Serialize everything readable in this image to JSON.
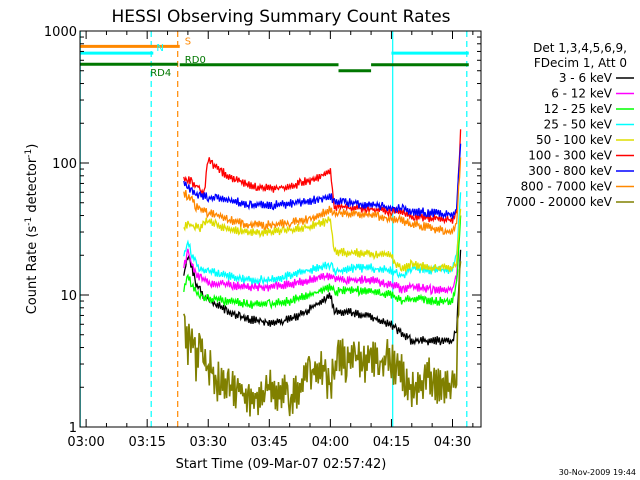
{
  "chart_data": {
    "type": "line",
    "title": "HESSI Observing Summary Count Rates",
    "xlabel": "Start Time (09-Mar-07 02:57:42)",
    "ylabel": "Count Rate (s⁻¹ detector⁻¹)",
    "ylabel_parts": [
      "Count Rate (s",
      "-1",
      " detector",
      "-1",
      ")"
    ],
    "y_scale": "log",
    "ylim": [
      1,
      1000
    ],
    "xlim_minutes": [
      -1.5,
      97
    ],
    "x_ticks": [
      {
        "t": 0,
        "label": "03:00"
      },
      {
        "t": 15,
        "label": "03:15"
      },
      {
        "t": 30,
        "label": "03:30"
      },
      {
        "t": 45,
        "label": "03:45"
      },
      {
        "t": 60,
        "label": "04:00"
      },
      {
        "t": 75,
        "label": "04:15"
      },
      {
        "t": 90,
        "label": "04:30"
      }
    ],
    "y_ticks": [
      {
        "v": 1,
        "label": "1"
      },
      {
        "v": 10,
        "label": "10"
      },
      {
        "v": 100,
        "label": "100"
      },
      {
        "v": 1000,
        "label": "1000"
      }
    ],
    "legend": {
      "placement": "right",
      "header": [
        "Det 1,3,4,5,6,9,",
        "FDecim 1, Att 0"
      ]
    },
    "series": [
      {
        "name": "3 - 6 keV",
        "color": "#000000",
        "t": [
          24,
          25,
          26,
          27,
          28,
          29,
          30,
          32,
          35,
          40,
          45,
          50,
          55,
          60,
          61,
          65,
          70,
          75,
          78,
          80,
          85,
          90,
          91,
          92
        ],
        "y": [
          14,
          20,
          16,
          12,
          11,
          9.5,
          9,
          8.5,
          7.5,
          6.5,
          6.2,
          6.5,
          7.8,
          10,
          7.5,
          7.5,
          6.8,
          6,
          5,
          4.5,
          4.5,
          4.5,
          5.5,
          22
        ]
      },
      {
        "name": "6 - 12 keV",
        "color": "#ff00ff",
        "t": [
          24,
          25,
          26,
          27,
          28,
          30,
          35,
          40,
          45,
          50,
          55,
          60,
          61,
          65,
          70,
          75,
          78,
          80,
          85,
          90,
          91,
          92
        ],
        "y": [
          16,
          22,
          17,
          14,
          13.5,
          12.5,
          12,
          11.5,
          11.5,
          12,
          13,
          14,
          13,
          13,
          13,
          12,
          11,
          11.5,
          11,
          11,
          14,
          40
        ]
      },
      {
        "name": "12 - 25 keV",
        "color": "#00ff00",
        "t": [
          24,
          25,
          26,
          27,
          28,
          30,
          35,
          40,
          45,
          50,
          55,
          60,
          61,
          65,
          70,
          75,
          78,
          80,
          85,
          90,
          91,
          92
        ],
        "y": [
          11,
          14,
          12,
          10.5,
          10,
          9.5,
          9,
          8.5,
          8.5,
          9,
          10,
          11.5,
          10.5,
          11,
          10.5,
          10,
          9,
          9.5,
          9,
          9,
          12,
          40
        ]
      },
      {
        "name": "25 - 50 keV",
        "color": "#00ffff",
        "t": [
          24,
          25,
          26,
          27,
          28,
          30,
          35,
          40,
          45,
          50,
          55,
          60,
          61,
          65,
          70,
          75,
          78,
          80,
          85,
          90,
          91,
          92
        ],
        "y": [
          20,
          25,
          20,
          17,
          15.5,
          15,
          14,
          13,
          13,
          14,
          15.5,
          17,
          15,
          16,
          16,
          15.5,
          14,
          16,
          15.5,
          15.5,
          20,
          60
        ]
      },
      {
        "name": "50 - 100 keV",
        "color": "#dddd00",
        "t": [
          24,
          25,
          26,
          27,
          28,
          29,
          30,
          32,
          35,
          40,
          45,
          50,
          55,
          60,
          61,
          65,
          70,
          75,
          76,
          78,
          80,
          85,
          90,
          91,
          92
        ],
        "y": [
          33,
          35,
          34,
          33,
          32,
          34,
          37,
          34,
          32,
          30,
          30,
          31,
          33,
          37,
          21,
          21,
          20.5,
          20,
          17,
          16,
          17,
          16,
          16,
          18,
          45
        ]
      },
      {
        "name": "100 - 300 keV",
        "color": "#ff0000",
        "t": [
          24,
          25,
          26,
          27,
          28,
          29,
          30,
          32,
          35,
          40,
          45,
          50,
          55,
          60,
          61,
          65,
          70,
          75,
          78,
          80,
          85,
          90,
          91,
          92
        ],
        "y": [
          78,
          76,
          72,
          68,
          64,
          60,
          104,
          92,
          80,
          68,
          64,
          66,
          74,
          86,
          47,
          46,
          45,
          43,
          42,
          40,
          38,
          37,
          42,
          180
        ]
      },
      {
        "name": "300 - 800 keV",
        "color": "#0000ff",
        "t": [
          24,
          25,
          26,
          27,
          28,
          30,
          32,
          35,
          40,
          45,
          50,
          55,
          60,
          61,
          65,
          70,
          75,
          78,
          80,
          85,
          90,
          91,
          92
        ],
        "y": [
          72,
          66,
          62,
          58,
          56,
          55,
          54,
          52,
          49,
          48,
          49,
          52,
          56,
          51,
          50,
          48,
          46,
          45,
          43,
          42,
          40,
          45,
          140
        ]
      },
      {
        "name": "800 - 7000 keV",
        "color": "#ff8800",
        "t": [
          24,
          25,
          26,
          27,
          28,
          30,
          32,
          35,
          40,
          45,
          50,
          55,
          60,
          61,
          65,
          70,
          75,
          78,
          80,
          85,
          90,
          91,
          92
        ],
        "y": [
          60,
          56,
          52,
          47,
          44,
          42,
          40,
          37,
          34,
          34,
          35,
          38,
          44,
          42,
          41,
          40,
          38,
          36,
          35,
          32,
          30,
          34,
          110
        ]
      },
      {
        "name": "7000 - 20000 keV",
        "color": "#808000",
        "t": [
          24,
          25,
          26,
          27,
          28,
          29,
          30,
          31,
          32,
          33,
          35,
          37,
          40,
          45,
          50,
          55,
          58,
          60,
          61,
          62,
          64,
          66,
          68,
          70,
          72,
          74,
          75,
          76,
          78,
          80,
          82,
          84,
          86,
          88,
          90,
          91,
          92
        ],
        "y": [
          6,
          4,
          5,
          3,
          4,
          3,
          2.5,
          3,
          2,
          2.5,
          2,
          2,
          1.6,
          2,
          1.7,
          2.5,
          3,
          2,
          3,
          3.5,
          3,
          3.7,
          3,
          3.5,
          3,
          3.5,
          3,
          3,
          2.5,
          2,
          2,
          2.5,
          2,
          2,
          2,
          3,
          18
        ]
      }
    ],
    "annotations": {
      "flags": [
        {
          "label": "S",
          "color": "#ff8800",
          "y": 765,
          "t_start": -1.5,
          "t_end": 23,
          "label_t": 24
        },
        {
          "label": "N",
          "color": "#00ffff",
          "y": 680,
          "t_start": -1.5,
          "t_end": 16.5,
          "label_t": 17
        },
        {
          "label": "N",
          "color": "#00ffff",
          "y": 680,
          "t_start": 75,
          "t_end": 94,
          "label_t": null
        },
        {
          "label": "RD4",
          "color": "#007700",
          "y": 560,
          "t_start": -1.5,
          "t_end": 22.5,
          "label_t": 15.5
        },
        {
          "label": "RD0",
          "color": "#007700",
          "y": 555,
          "t_start": 23,
          "t_end": 62,
          "label_t": 24
        },
        {
          "label": "",
          "color": "#007700",
          "y": 500,
          "t_start": 62,
          "t_end": 70,
          "label_t": null
        },
        {
          "label": "",
          "color": "#007700",
          "y": 555,
          "t_start": 70,
          "t_end": 94,
          "label_t": null
        }
      ],
      "vlines": [
        {
          "t": -1.45,
          "color": "#00ffff",
          "style": "solid"
        },
        {
          "t": 16,
          "color": "#00ffff",
          "style": "dash"
        },
        {
          "t": 22.5,
          "color": "#ff8800",
          "style": "dash"
        },
        {
          "t": 75.3,
          "color": "#00ffff",
          "style": "solid"
        },
        {
          "t": 93.5,
          "color": "#00ffff",
          "style": "dash"
        }
      ]
    }
  },
  "footer": {
    "timestamp": "30-Nov-2009 19:44"
  }
}
